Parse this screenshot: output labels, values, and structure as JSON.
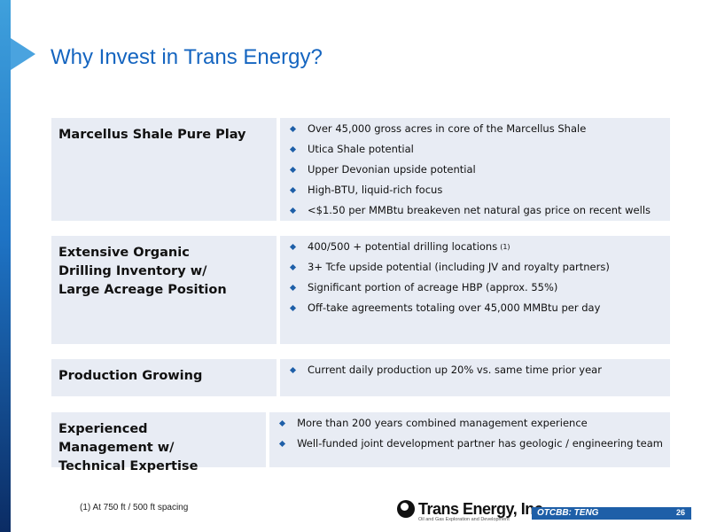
{
  "slide": {
    "title": "Why Invest in Trans Energy?",
    "sections": [
      {
        "heading": "Marcellus Shale Pure Play",
        "bullets": [
          "Over 45,000 gross acres in core of the Marcellus Shale",
          "Utica Shale potential",
          "Upper Devonian upside potential",
          "High-BTU, liquid-rich focus",
          "<$1.50 per MMBtu breakeven net natural gas price on recent wells"
        ]
      },
      {
        "heading": "Extensive Organic Drilling Inventory w/ Large Acreage Position",
        "bullets": [
          "400/500 + potential drilling locations",
          "3+ Tcfe upside potential (including JV and royalty partners)",
          "Significant portion of acreage HBP (approx. 55%)",
          "Off-take agreements totaling over 45,000 MMBtu per day"
        ],
        "footnote_marker": "(1)"
      },
      {
        "heading": "Production Growing",
        "bullets": [
          "Current daily production up 20% vs. same time prior year"
        ]
      },
      {
        "heading": "Experienced Management w/ Technical Expertise",
        "bullets": [
          "More than 200 years combined management experience",
          "Well-funded joint development partner has geologic / engineering team"
        ]
      }
    ],
    "footnote": "(1)  At 750 ft / 500 ft spacing"
  },
  "footer": {
    "logo_text": "Trans Energy, Inc.",
    "logo_tagline": "Oil and Gas Exploration and Development",
    "ticker": "OTCBB: TENG",
    "page_number": "26"
  },
  "colors": {
    "title": "#1565c0",
    "cell_background": "#e8ecf4",
    "bullet": "#1e5fa8",
    "ticker_bar": "#1e5fa8"
  },
  "icons": {
    "bullet": "diamond-bullet-icon",
    "logo": "trans-energy-logo-icon",
    "arrow": "arrow-marker-icon"
  }
}
